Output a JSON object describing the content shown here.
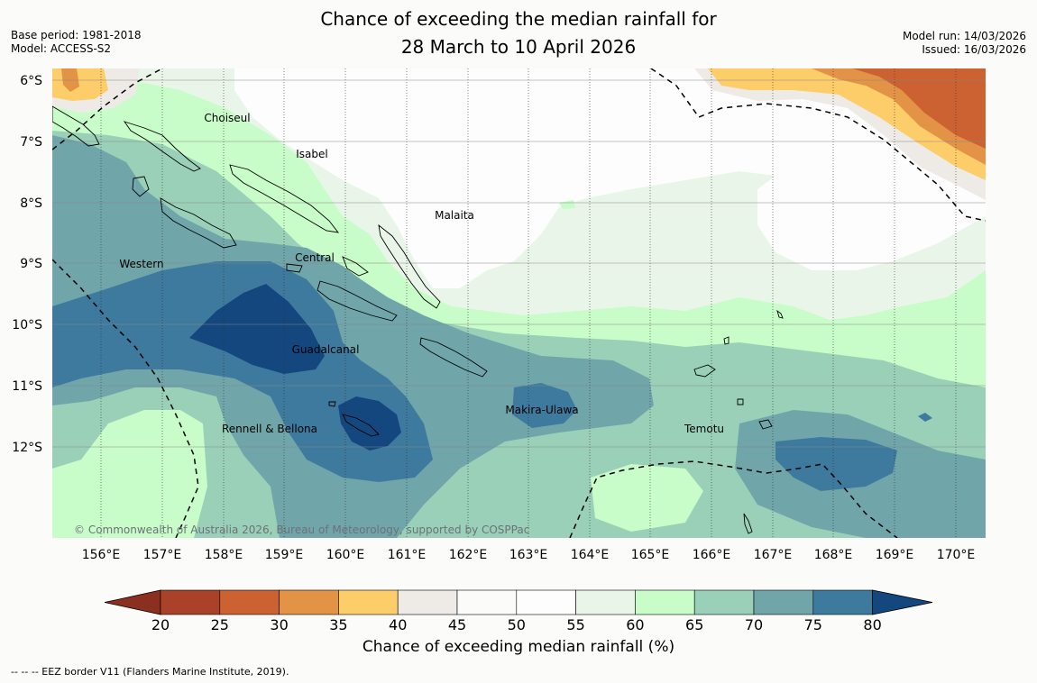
{
  "title": {
    "line1": "Chance of exceeding the median rainfall for",
    "line2": "28 March to 10 April 2026"
  },
  "meta_left": {
    "base_period": "Base period: 1981-2018",
    "model": "Model: ACCESS-S2"
  },
  "meta_right": {
    "model_run": "Model run: 14/03/2026",
    "issued": "Issued: 16/03/2026"
  },
  "map": {
    "lon_labels": [
      "156°E",
      "157°E",
      "158°E",
      "159°E",
      "160°E",
      "161°E",
      "162°E",
      "163°E",
      "164°E",
      "165°E",
      "166°E",
      "167°E",
      "168°E",
      "169°E",
      "170°E"
    ],
    "lat_labels": [
      "6°S",
      "7°S",
      "8°S",
      "9°S",
      "10°S",
      "11°S",
      "12°S"
    ],
    "places": [
      {
        "name": "Choiseul"
      },
      {
        "name": "Isabel"
      },
      {
        "name": "Malaita"
      },
      {
        "name": "Western"
      },
      {
        "name": "Central"
      },
      {
        "name": "Guadalcanal"
      },
      {
        "name": "Rennell & Bellona"
      },
      {
        "name": "Makira-Ulawa"
      },
      {
        "name": "Temotu"
      }
    ],
    "copyright": "© Commonwealth of Australia 2026, Bureau of Meteorology, supported by COSPPac"
  },
  "legend": {
    "ticks": [
      "20",
      "25",
      "30",
      "35",
      "40",
      "45",
      "50",
      "55",
      "60",
      "65",
      "70",
      "75",
      "80"
    ],
    "colors": [
      "#a94229",
      "#cc6132",
      "#e39346",
      "#fdcd6a",
      "#eeebe7",
      "#fbfcfa",
      "#fcfdfc",
      "#eaf5ea",
      "#c8fcc8",
      "#9ad0b8",
      "#70a6aa",
      "#3e7a9e",
      "#14477e"
    ],
    "under_color": "#8b3020",
    "over_color": "#14477e",
    "title": "Chance of exceeding median rainfall (%)"
  },
  "footer": "--  --  -- EEZ border V11 (Flanders Marine Institute, 2019)."
}
